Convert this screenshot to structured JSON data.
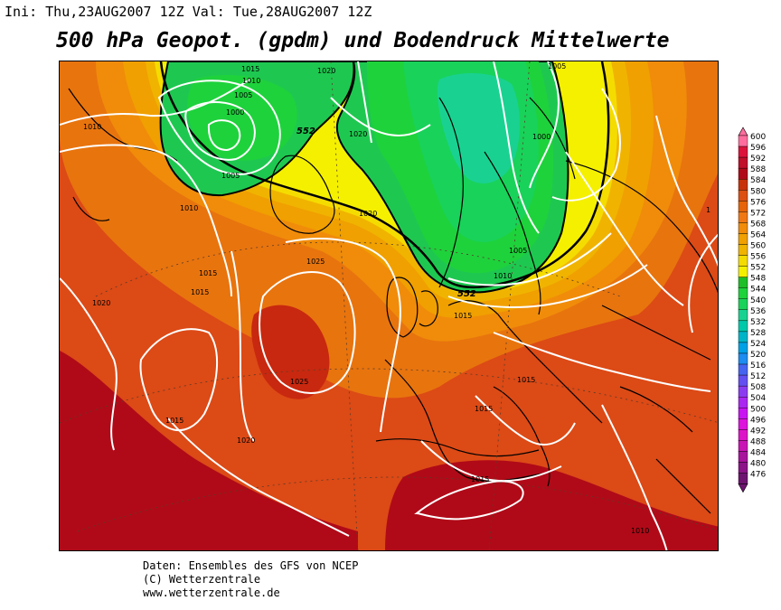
{
  "header": {
    "run_info": "Ini: Thu,23AUG2007 12Z Val: Tue,28AUG2007 12Z",
    "title": "500 hPa Geopot. (gpdm) und Bodendruck Mittelwerte"
  },
  "map": {
    "geopotential_label": "552",
    "isobar_labels": {
      "l1015_a": "1015",
      "l1020_a": "1020",
      "l1005_a": "1005",
      "l1010_a": "1010",
      "l1005_b": "1005",
      "l1000_a": "1000",
      "l1005_c": "1005",
      "l1010_b": "1010",
      "l1020_b": "1020",
      "l1000_b": "1000",
      "l1020_c": "1020",
      "l1025_a": "1025",
      "l1015_b": "1015",
      "l1015_c": "1015",
      "l1020_d": "1020",
      "l1025_b": "1025",
      "l1005_d": "1005",
      "l1010_c": "1010",
      "l1015_d": "1015",
      "l1015_e": "1015",
      "l1015_f": "1015",
      "l1015_g": "1015",
      "l1015_h": "1015",
      "l1020_e": "1020",
      "l1015_i": "1015",
      "l1010_d": "1010",
      "l1010_e": "1010",
      "l1_edge": "1"
    },
    "colors": {
      "green_core": "#19d291",
      "green": "#1ec850",
      "yellow": "#f5e400",
      "orange": "#f0a000",
      "red": "#d83c14",
      "dark_red": "#a8001c",
      "isobar": "#ffffff"
    }
  },
  "legend": {
    "values": [
      "600",
      "596",
      "592",
      "588",
      "584",
      "580",
      "576",
      "572",
      "568",
      "564",
      "560",
      "556",
      "552",
      "548",
      "544",
      "540",
      "536",
      "532",
      "528",
      "524",
      "520",
      "516",
      "512",
      "508",
      "504",
      "500",
      "496",
      "492",
      "488",
      "484",
      "480",
      "476"
    ],
    "colors": [
      "#ff6e9e",
      "#dc143c",
      "#c0102a",
      "#b00a18",
      "#c8320a",
      "#dc5014",
      "#e6640a",
      "#f07814",
      "#f08c0a",
      "#f0a000",
      "#f0b400",
      "#f5dc00",
      "#f5f000",
      "#1ebe28",
      "#1ed23c",
      "#19d25a",
      "#19d291",
      "#00c8aa",
      "#00b4c8",
      "#00a0e6",
      "#1e8cf0",
      "#4664f0",
      "#6450f0",
      "#8c3cf0",
      "#aa28f0",
      "#c814f0",
      "#dc14dc",
      "#dc14c8",
      "#c814b4",
      "#a8149c",
      "#8c1488",
      "#6e1470"
    ]
  },
  "credits": {
    "line1": "Daten: Ensembles des GFS von NCEP",
    "line2": "(C) Wetterzentrale",
    "line3": "www.wetterzentrale.de"
  }
}
